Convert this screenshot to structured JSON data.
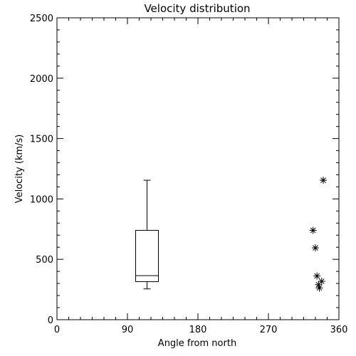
{
  "chart_data": {
    "type": "boxplot-scatter",
    "title": "Velocity distribution",
    "xlabel": "Angle from north",
    "ylabel": "Velocity (km/s)",
    "xlim": [
      0,
      360
    ],
    "ylim": [
      0,
      2500
    ],
    "xticks": [
      0,
      90,
      180,
      270,
      360
    ],
    "yticks": [
      0,
      500,
      1000,
      1500,
      2000,
      2500
    ],
    "grid": false,
    "box": {
      "x": 115,
      "whisker_low": 255,
      "q1": 315,
      "median": 365,
      "q3": 740,
      "whisker_high": 1155
    },
    "points": [
      {
        "x": 327,
        "y": 740
      },
      {
        "x": 330,
        "y": 595
      },
      {
        "x": 332,
        "y": 362
      },
      {
        "x": 334,
        "y": 290
      },
      {
        "x": 335,
        "y": 262
      },
      {
        "x": 338,
        "y": 318
      },
      {
        "x": 340,
        "y": 1155
      }
    ]
  }
}
